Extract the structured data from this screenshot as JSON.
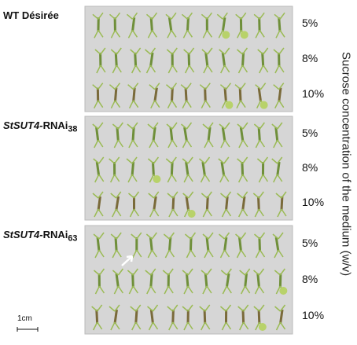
{
  "panels": [
    {
      "label": "WT Désirée",
      "rows": [
        "5%",
        "8%",
        "10%"
      ]
    },
    {
      "label": {
        "gene": "StSUT4",
        "suffix": "-RNAi",
        "sub": "38"
      },
      "rows": [
        "5%",
        "8%",
        "10%"
      ]
    },
    {
      "label": {
        "gene": "StSUT4",
        "suffix": "-RNAi",
        "sub": "63"
      },
      "rows": [
        "5%",
        "8%",
        "10%"
      ]
    }
  ],
  "side_label": "Sucrose concentration of the medium (w/v)",
  "scale_bar": "1cm"
}
